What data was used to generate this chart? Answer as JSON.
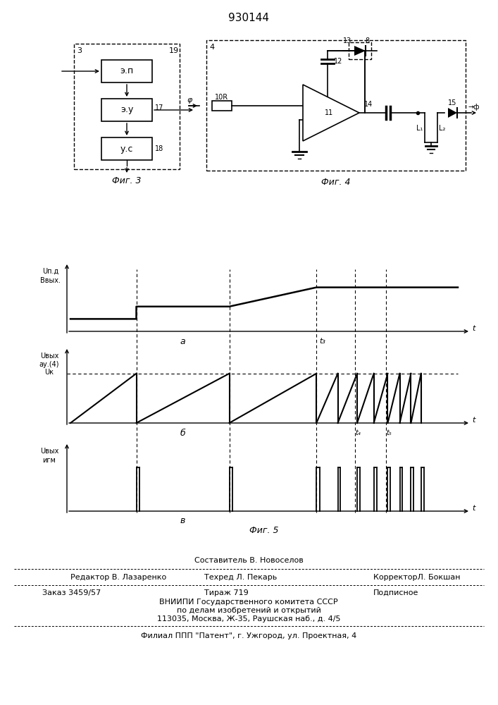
{
  "patent_number": "930144",
  "bg_color": "#ffffff",
  "footer": {
    "line0_center": "Составитель В. Новоселов",
    "line1_left": "Редактор В. Лазаренко",
    "line1_center": "Техред Л. Пекарь",
    "line1_right": "КорректорЛ. Бокшан",
    "order": "Заказ 3459/57",
    "tirazh": "Тираж 719",
    "podpisnoe": "Подписное",
    "vniip1": "ВНИИПИ Государственного комитета СССР",
    "vniip2": "по делам изобретений и открытий",
    "address": "113035, Москва, Ж-35, Раушская наб., д. 4/5",
    "filial": "Филиал ППП \"Патент\", г. Ужгород, ул. Проектная, 4"
  }
}
